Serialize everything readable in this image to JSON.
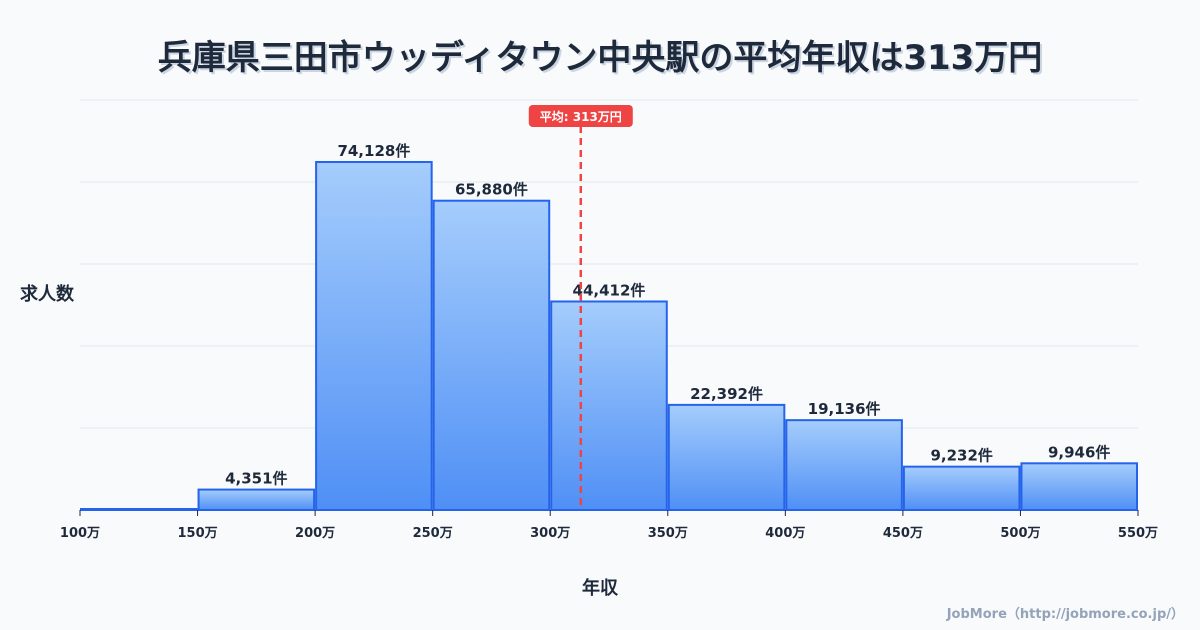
{
  "chart_data": {
    "type": "bar",
    "title": "兵庫県三田市ウッディタウン中央駅の平均年収は313万円",
    "xlabel": "年収",
    "ylabel": "求人数",
    "bin_edges": [
      100,
      150,
      200,
      250,
      300,
      350,
      400,
      450,
      500,
      550
    ],
    "tick_labels": [
      "100万",
      "150万",
      "200万",
      "250万",
      "300万",
      "350万",
      "400万",
      "450万",
      "500万",
      "550万"
    ],
    "values": [
      0,
      4351,
      74128,
      65880,
      44412,
      22392,
      19136,
      9232,
      9946
    ],
    "data_labels": [
      "",
      "4,351件",
      "74,128件",
      "65,880件",
      "44,412件",
      "22,392件",
      "19,136件",
      "9,232件",
      "9,946件"
    ],
    "ylim": [
      0,
      87330
    ],
    "xlim": [
      100,
      550
    ],
    "grid": true,
    "mean": {
      "value": 313,
      "label": "平均: 313万円",
      "color": "#ef4444"
    },
    "bar_color": "#60a5fa",
    "bar_border": "#2563eb"
  },
  "credit": "JobMore（http://jobmore.co.jp/）"
}
